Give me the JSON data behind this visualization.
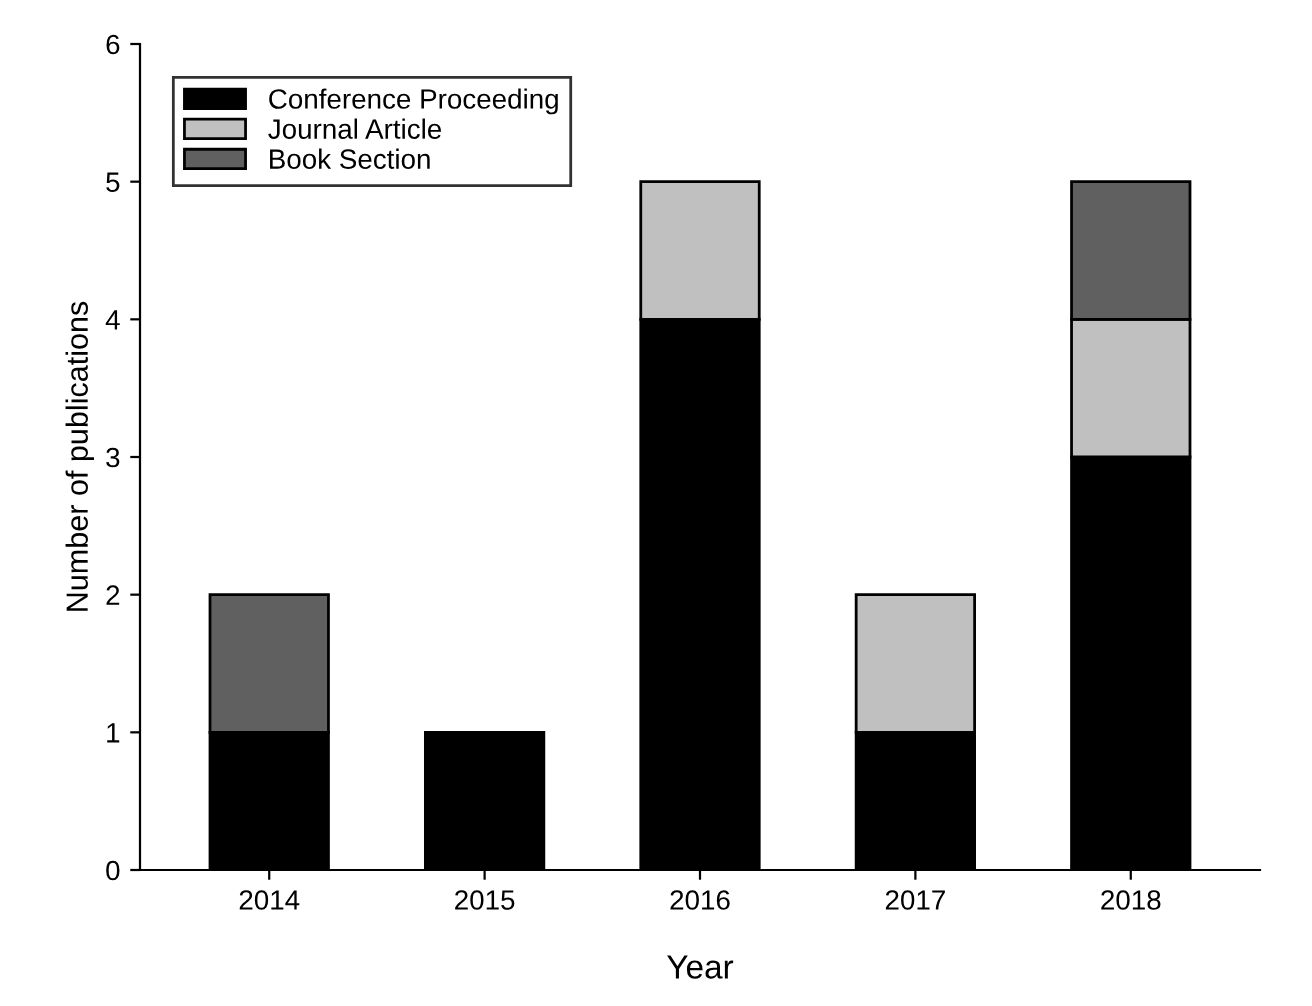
{
  "chart_data": {
    "type": "bar",
    "stacked": true,
    "xlabel": "Year",
    "ylabel": "Number of publications",
    "categories": [
      "2014",
      "2015",
      "2016",
      "2017",
      "2018"
    ],
    "series": [
      {
        "name": "Conference Proceeding",
        "color": "#000000",
        "values": [
          1,
          1,
          4,
          1,
          3
        ]
      },
      {
        "name": "Journal Article",
        "color": "#c0c0c0",
        "values": [
          null,
          null,
          1,
          1,
          1
        ]
      },
      {
        "name": "Book Section",
        "color": "#606060",
        "values": [
          1,
          null,
          null,
          null,
          1
        ]
      }
    ],
    "ylim": [
      0,
      6
    ],
    "yticks": [
      0,
      1,
      2,
      3,
      4,
      5,
      6
    ],
    "grid": false,
    "legend": "top left"
  }
}
